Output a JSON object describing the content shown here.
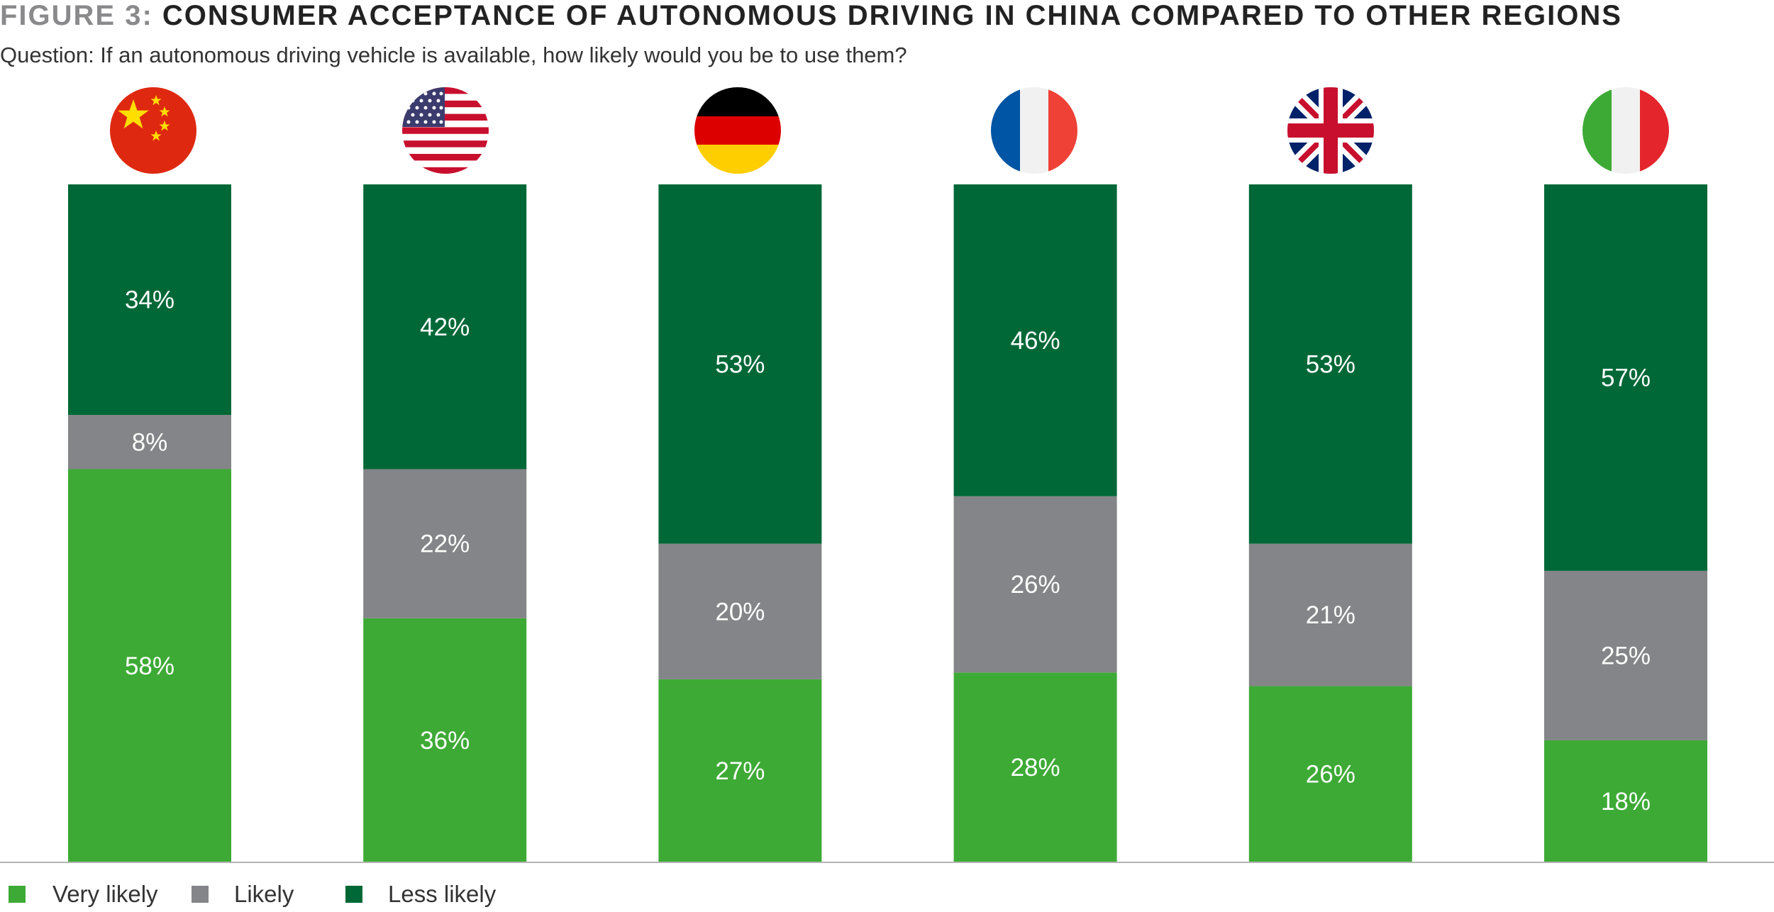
{
  "header": {
    "figure_label": "FIGURE 3:",
    "title": "CONSUMER ACCEPTANCE OF AUTONOMOUS DRIVING IN CHINA COMPARED TO OTHER REGIONS",
    "subtitle": "Question: If an autonomous driving vehicle is available, how likely would you be to use them?"
  },
  "colors": {
    "very_likely": "#3daa35",
    "likely": "#848588",
    "less_likely": "#006837"
  },
  "chart_data": {
    "type": "bar",
    "stacked": true,
    "categories": [
      "China",
      "USA",
      "Germany",
      "France",
      "UK",
      "Italy"
    ],
    "category_icons": [
      "china-flag-icon",
      "usa-flag-icon",
      "germany-flag-icon",
      "france-flag-icon",
      "uk-flag-icon",
      "italy-flag-icon"
    ],
    "series": [
      {
        "name": "Very likely",
        "color": "#3daa35",
        "values": [
          58,
          36,
          27,
          28,
          26,
          18
        ]
      },
      {
        "name": "Likely",
        "color": "#848588",
        "values": [
          8,
          22,
          20,
          26,
          21,
          25
        ]
      },
      {
        "name": "Less likely",
        "color": "#006837",
        "values": [
          34,
          42,
          53,
          46,
          53,
          57
        ]
      }
    ],
    "value_suffix": "%",
    "ylim": [
      0,
      100
    ],
    "legend_position": "bottom-left",
    "grid": false,
    "title": "CONSUMER ACCEPTANCE OF AUTONOMOUS DRIVING IN CHINA COMPARED TO OTHER REGIONS",
    "xlabel": "",
    "ylabel": ""
  },
  "legend": {
    "items": [
      {
        "label": "Very likely",
        "color": "#3daa35"
      },
      {
        "label": "Likely",
        "color": "#848588"
      },
      {
        "label": "Less likely",
        "color": "#006837"
      }
    ]
  }
}
